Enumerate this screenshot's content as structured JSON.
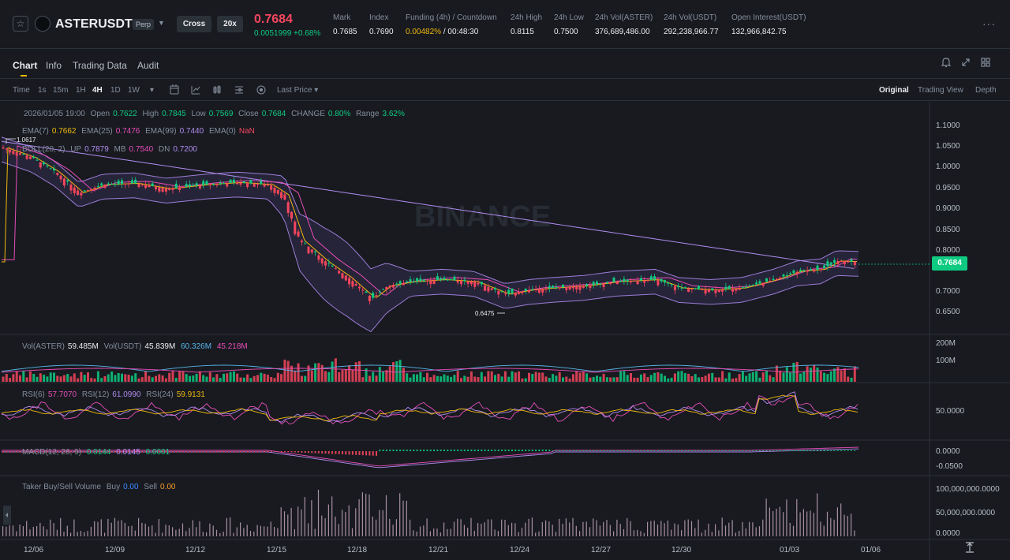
{
  "header": {
    "symbol": "ASTERUSDT",
    "contract": "Perp",
    "margin_mode": "Cross",
    "leverage": "20x",
    "last_price": "0.7684",
    "price_change": "0.0051999 +0.68%",
    "stats": [
      {
        "label": "Mark",
        "value": "0.7685"
      },
      {
        "label": "Index",
        "value": "0.7690"
      },
      {
        "label": "Funding (4h) / Countdown",
        "value_funding": "0.00482%",
        "value_countdown": " / 00:48:30"
      },
      {
        "label": "24h High",
        "value": "0.8115"
      },
      {
        "label": "24h Low",
        "value": "0.7500"
      },
      {
        "label": "24h Vol(ASTER)",
        "value": "376,689,486.00"
      },
      {
        "label": "24h Vol(USDT)",
        "value": "292,238,966.77"
      },
      {
        "label": "Open Interest(USDT)",
        "value": "132,966,842.75"
      }
    ]
  },
  "tabs": [
    "Chart",
    "Info",
    "Trading Data",
    "Audit"
  ],
  "toolbar": {
    "intervals": [
      "Time",
      "1s",
      "15m",
      "1H",
      "4H",
      "1D",
      "1W"
    ],
    "active_interval": "4H",
    "price_type": "Last Price",
    "views": [
      "Original",
      "Trading View",
      "Depth"
    ],
    "active_view": "Original"
  },
  "ohlc": {
    "date": "2026/01/05 19:00",
    "open_label": "Open",
    "open": "0.7622",
    "high_label": "High",
    "high": "0.7845",
    "low_label": "Low",
    "low": "0.7569",
    "close_label": "Close",
    "close": "0.7684",
    "change_label": "CHANGE",
    "change": "0.80%",
    "range_label": "Range",
    "range": "3.62%"
  },
  "ema": {
    "ema7_label": "EMA(7)",
    "ema7": "0.7662",
    "ema25_label": "EMA(25)",
    "ema25": "0.7476",
    "ema99_label": "EMA(99)",
    "ema99": "0.7440",
    "ema0_label": "EMA(0)",
    "ema0": "NaN"
  },
  "boll": {
    "label": "BOLL(20, 2)",
    "up_label": "UP",
    "up": "0.7879",
    "mb_label": "MB",
    "mb": "0.7540",
    "dn_label": "DN",
    "dn": "0.7200"
  },
  "price_axis": [
    "1.1000",
    "1.0500",
    "1.0000",
    "0.9500",
    "0.9000",
    "0.8500",
    "0.8000",
    "0.7684",
    "0.7000",
    "0.6500"
  ],
  "current_price_tag": "0.7684",
  "high_marker": "1.0617",
  "low_marker": "0.6475",
  "watermark": "BINANCE",
  "volume": {
    "vol_label": "Vol(ASTER)",
    "vol": "59.485M",
    "volusdt_label": "Vol(USDT)",
    "volusdt": "45.839M",
    "ma1": "60.326M",
    "ma2": "45.218M",
    "axis": [
      "200M",
      "100M"
    ]
  },
  "rsi": {
    "rsi6_label": "RSI(6)",
    "rsi6": "57.7070",
    "rsi12_label": "RSI(12)",
    "rsi12": "61.0990",
    "rsi24_label": "RSI(24)",
    "rsi24": "59.9131",
    "axis": [
      "50.0000"
    ]
  },
  "macd": {
    "label": "MACD(12, 26, 9)",
    "v1": "0.0144",
    "v2": "0.0145",
    "v3": "0.0001",
    "axis": [
      "0.0000",
      "-0.0500"
    ]
  },
  "taker": {
    "label": "Taker Buy/Sell Volume",
    "buy_label": "Buy",
    "buy": "0.00",
    "sell_label": "Sell",
    "sell": "0.00",
    "axis": [
      "100,000,000.0000",
      "50,000,000.0000",
      "0.0000"
    ]
  },
  "time_axis": [
    "12/06",
    "12/09",
    "12/12",
    "12/15",
    "12/18",
    "12/21",
    "12/24",
    "12/27",
    "12/30",
    "01/03",
    "01/06"
  ],
  "colors": {
    "up": "#0ecb81",
    "down": "#f6465d",
    "ema7": "#f0b90b",
    "ema25": "#e84db8",
    "ema99": "#b18cf0",
    "boll_band": "#9c7cd6",
    "background": "#181a20",
    "accent": "#f0b90b"
  },
  "icons": [
    "star-icon",
    "bell-icon",
    "expand-icon",
    "grid-icon",
    "more-icon",
    "calendar-icon",
    "indicator-icon",
    "settings-icon",
    "target-icon"
  ]
}
